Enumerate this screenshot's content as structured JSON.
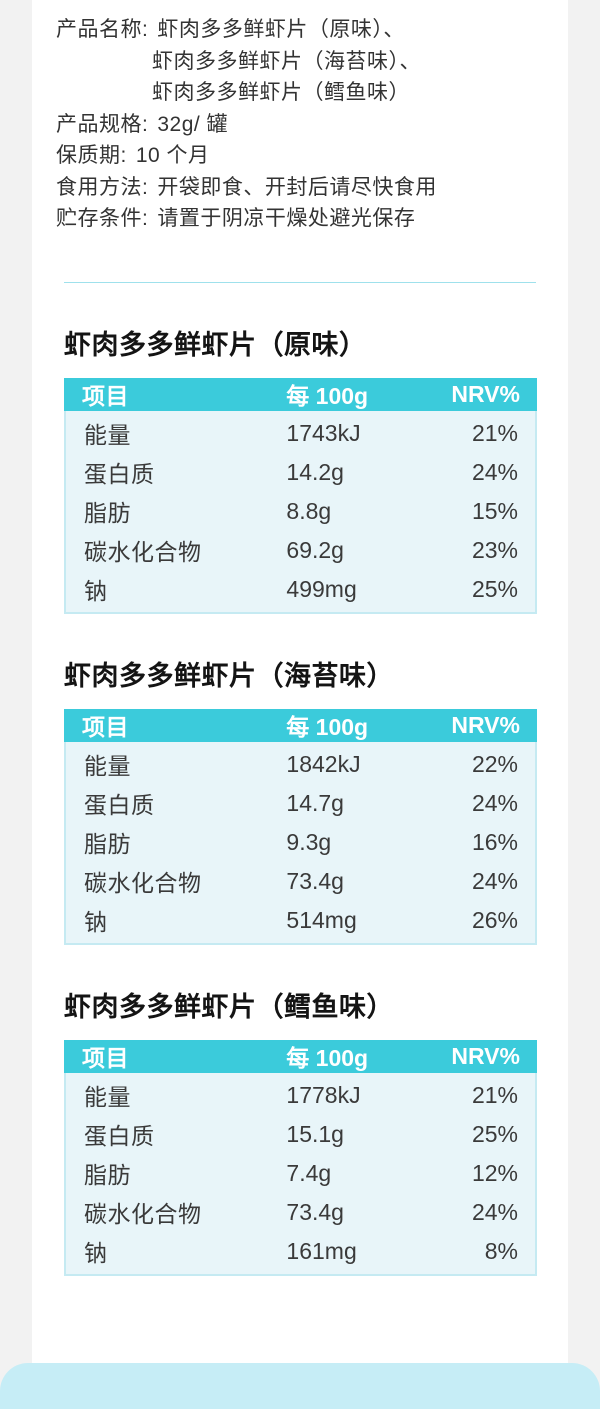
{
  "colors": {
    "page_background": "#f2f2f2",
    "card_background": "#ffffff",
    "table_header": "#3bcbdb",
    "table_row_background": "#e8f5f9",
    "table_border": "#c5eaf2",
    "divider": "#9fe1ec",
    "bottom_sheet": "#c6edf6"
  },
  "info": {
    "lines": [
      {
        "label": "产品名称:",
        "value": "虾肉多多鲜虾片（原味）、"
      },
      {
        "label": "",
        "value": "虾肉多多鲜虾片（海苔味）、"
      },
      {
        "label": "",
        "value": "虾肉多多鲜虾片（鳕鱼味）"
      },
      {
        "label": "产品规格:",
        "value": "32g/ 罐"
      },
      {
        "label": "保质期:",
        "value": "10 个月"
      },
      {
        "label": "食用方法:",
        "value": "开袋即食、开封后请尽快食用"
      },
      {
        "label": "贮存条件:",
        "value": "请置于阴凉干燥处避光保存"
      }
    ]
  },
  "sections": [
    {
      "title": "虾肉多多鲜虾片（原味）",
      "headers": [
        "项目",
        "每 100g",
        "NRV%"
      ],
      "rows": [
        [
          "能量",
          "1743kJ",
          "21%"
        ],
        [
          "蛋白质",
          "14.2g",
          "24%"
        ],
        [
          "脂肪",
          "8.8g",
          "15%"
        ],
        [
          "碳水化合物",
          "69.2g",
          "23%"
        ],
        [
          "钠",
          "499mg",
          "25%"
        ]
      ]
    },
    {
      "title": "虾肉多多鲜虾片（海苔味）",
      "headers": [
        "项目",
        "每 100g",
        "NRV%"
      ],
      "rows": [
        [
          "能量",
          "1842kJ",
          "22%"
        ],
        [
          "蛋白质",
          "14.7g",
          "24%"
        ],
        [
          "脂肪",
          "9.3g",
          "16%"
        ],
        [
          "碳水化合物",
          "73.4g",
          "24%"
        ],
        [
          "钠",
          "514mg",
          "26%"
        ]
      ]
    },
    {
      "title": "虾肉多多鲜虾片（鳕鱼味）",
      "headers": [
        "项目",
        "每 100g",
        "NRV%"
      ],
      "rows": [
        [
          "能量",
          "1778kJ",
          "21%"
        ],
        [
          "蛋白质",
          "15.1g",
          "25%"
        ],
        [
          "脂肪",
          "7.4g",
          "12%"
        ],
        [
          "碳水化合物",
          "73.4g",
          "24%"
        ],
        [
          "钠",
          "161mg",
          "8%"
        ]
      ]
    }
  ]
}
